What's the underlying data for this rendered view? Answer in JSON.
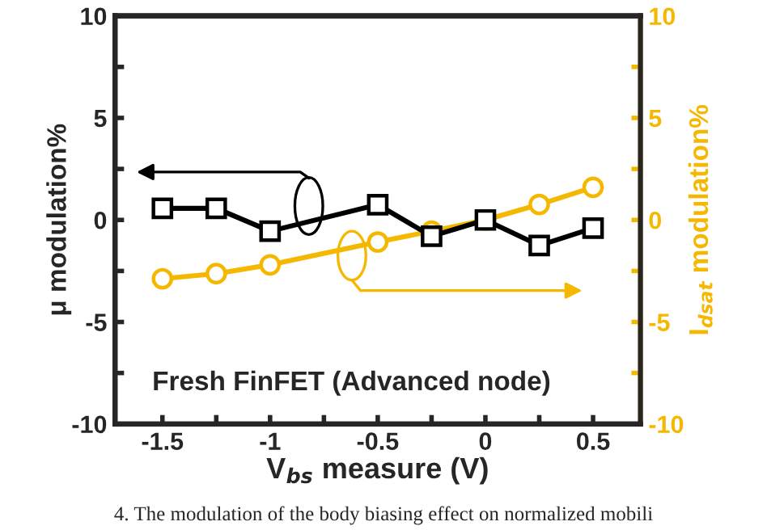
{
  "chart_data": {
    "type": "line",
    "xlabel": "V$_{bs}$ measure (V)",
    "ylabel": "μ modulation%",
    "y2label": "I$_{dsat}$ modulation%",
    "x": [
      -1.5,
      -1.25,
      -1,
      -0.5,
      -0.25,
      0,
      0.25,
      0.5
    ],
    "series": [
      {
        "color": "#000000",
        "marker": "square",
        "values": [
          0.57,
          0.57,
          -0.55,
          0.75,
          -0.8,
          0,
          -1.25,
          -0.4
        ]
      },
      {
        "color": "#f5b800",
        "marker": "circle",
        "axis": "y2",
        "values": [
          -2.88,
          -2.63,
          -2.2,
          -1.08,
          -0.55,
          0,
          0.76,
          1.6
        ]
      }
    ],
    "xlim": [
      -1.72,
      0.72
    ],
    "xticks": [
      -1.5,
      {
        "value": -1.25,
        "label": null
      },
      -1,
      {
        "value": -0.75,
        "label": null
      },
      -0.5,
      {
        "value": -0.25,
        "label": null
      },
      0,
      {
        "value": 0.25,
        "label": null
      },
      0.5
    ],
    "ylim": [
      -10,
      10
    ],
    "yticks": [
      -10,
      {
        "value": -7.5,
        "label": null
      },
      -5,
      {
        "value": -2.5,
        "label": null
      },
      0,
      {
        "value": 2.5,
        "label": null
      },
      5,
      {
        "value": 7.5,
        "label": null
      },
      10
    ],
    "y2lim": [
      -10,
      10
    ],
    "y2ticks": [
      -10,
      {
        "value": -7.5,
        "label": null
      },
      -5,
      {
        "value": -2.5,
        "label": null
      },
      0,
      {
        "value": 2.5,
        "label": null
      },
      5,
      {
        "value": 7.5,
        "label": null
      },
      10
    ],
    "annotations": [
      "Fresh FinFET (Advanced node)",
      "4. The modulation of the body biasing effect on normalized mobili"
    ],
    "grid": false,
    "legend": false,
    "line_style": "solid"
  }
}
